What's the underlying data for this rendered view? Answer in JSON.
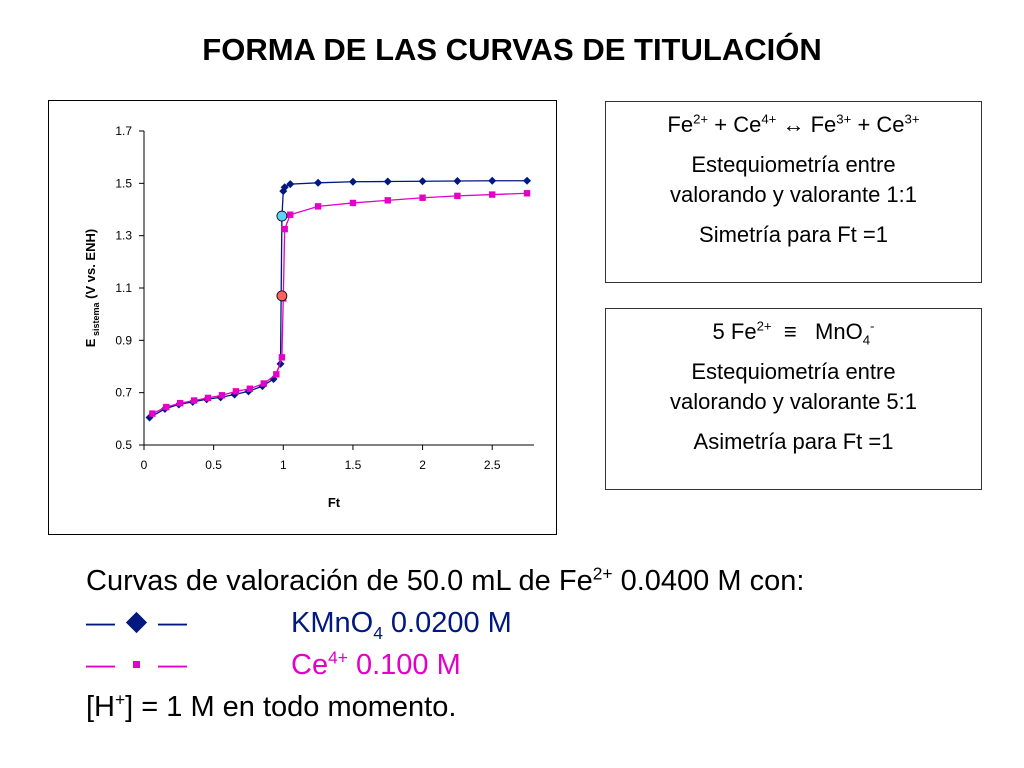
{
  "title": "FORMA DE LAS CURVAS DE TITULACIÓN",
  "box1": {
    "reaction": {
      "a": "Fe",
      "a_ch": "2+",
      "plus1": " + ",
      "b": "Ce",
      "b_ch": "4+",
      "arrow": " ↔ ",
      "c": "Fe",
      "c_ch": "3+",
      "plus2": " + ",
      "d": "Ce",
      "d_ch": "3+"
    },
    "line2": "Estequiometría entre",
    "line3": "valorando y valorante 1:1",
    "line4": "Simetría para Ft =1"
  },
  "box2": {
    "eq": {
      "a": "5 Fe",
      "a_ch": "2+",
      "equiv": "  ≡   ",
      "b": "MnO",
      "b_sub": "4",
      "b_ch": "-"
    },
    "line2": "Estequiometría entre",
    "line3": "valorando y valorante 5:1",
    "line4": "Asimetría para Ft =1"
  },
  "caption": {
    "line1_pre": "Curvas de valoración de 50.0 mL de Fe",
    "line1_ch": "2+",
    "line1_post": " 0.0400 M con:",
    "kmno4_symbol_left": "—",
    "kmno4_symbol_right": "—",
    "kmno4_label": "KMnO",
    "kmno4_sub": "4",
    "kmno4_conc": " 0.0200 M",
    "ce_symbol_left": "—",
    "ce_symbol_right": "—",
    "ce_label": "Ce",
    "ce_ch": "4+",
    "ce_conc": " 0.100 M",
    "h_pre": "[H",
    "h_ch": "+",
    "h_post": "] = 1 M en todo momento."
  },
  "colors": {
    "kmno4": "#001880",
    "ce": "#e400c8",
    "equivalence_ce": "#ff6060",
    "equivalence_kmno4": "#60d0ff"
  },
  "chart_data": {
    "type": "line",
    "xlabel": "Ft",
    "ylabel": "E",
    "ylabel_sub": "sistema",
    "ylabel_post": " (V vs. ENH)",
    "xlim": [
      0,
      2.8
    ],
    "ylim": [
      0.5,
      1.7
    ],
    "xticks": [
      0,
      0.5,
      1,
      1.5,
      2,
      2.5
    ],
    "xtick_labels": [
      "0",
      "0.5",
      "1",
      "1.5",
      "2",
      "2.5"
    ],
    "yticks": [
      0.5,
      0.7,
      0.9,
      1.1,
      1.3,
      1.5,
      1.7
    ],
    "ytick_labels": [
      "0.5",
      "0.7",
      "0.9",
      "1.1",
      "1.3",
      "1.5",
      "1.7"
    ],
    "series": [
      {
        "key": "kmno4",
        "marker": "diamond",
        "x": [
          0.04,
          0.15,
          0.25,
          0.35,
          0.45,
          0.55,
          0.65,
          0.75,
          0.85,
          0.93,
          0.98,
          0.99,
          1.0,
          1.01,
          1.05,
          1.25,
          1.5,
          1.75,
          2.0,
          2.25,
          2.5,
          2.75
        ],
        "y": [
          0.605,
          0.638,
          0.655,
          0.665,
          0.675,
          0.682,
          0.693,
          0.705,
          0.725,
          0.752,
          0.81,
          1.37,
          1.47,
          1.485,
          1.497,
          1.502,
          1.506,
          1.507,
          1.508,
          1.509,
          1.51,
          1.51
        ]
      },
      {
        "key": "ce",
        "marker": "square",
        "x": [
          0.06,
          0.16,
          0.26,
          0.36,
          0.46,
          0.56,
          0.66,
          0.76,
          0.86,
          0.95,
          0.99,
          1.0,
          1.01,
          1.05,
          1.25,
          1.5,
          1.75,
          2.0,
          2.25,
          2.5,
          2.75
        ],
        "y": [
          0.62,
          0.645,
          0.66,
          0.67,
          0.68,
          0.69,
          0.705,
          0.715,
          0.735,
          0.77,
          0.835,
          1.06,
          1.325,
          1.38,
          1.412,
          1.425,
          1.435,
          1.445,
          1.452,
          1.457,
          1.462
        ]
      }
    ],
    "equivalence_points": [
      {
        "key": "kmno4",
        "x": 0.99,
        "y": 1.375
      },
      {
        "key": "ce",
        "x": 0.99,
        "y": 1.07
      }
    ]
  }
}
